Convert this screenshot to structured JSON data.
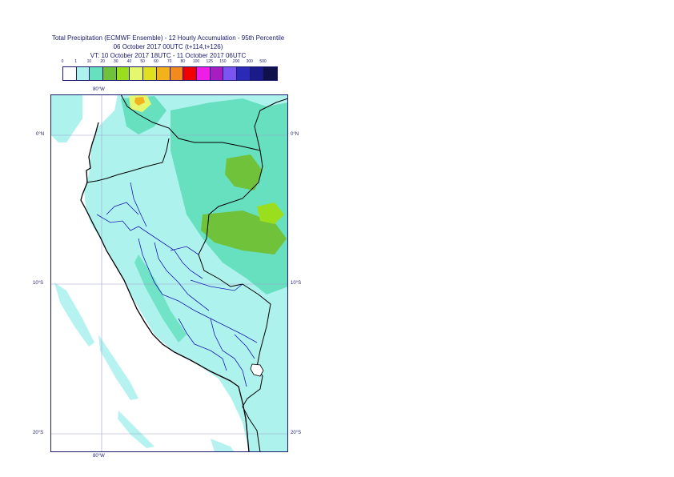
{
  "title": {
    "line1": "Total Precipitation (ECMWF Ensemble) - 12 Hourly Accumulation - 95th Percentile",
    "line2": "06 October 2017 00UTC (t+114,t+126)",
    "line3": "VT: 10 October 2017 18UTC - 11 October 2017 06UTC"
  },
  "legend": {
    "ticks": [
      "0",
      "1",
      "10",
      "20",
      "30",
      "40",
      "50",
      "60",
      "70",
      "80",
      "100",
      "125",
      "150",
      "200",
      "300",
      "500"
    ],
    "colors": [
      "#ffffff",
      "#aef2ee",
      "#66e0bf",
      "#6fc23a",
      "#9ade1e",
      "#e5f76f",
      "#e0e01e",
      "#f2b21e",
      "#f28a1e",
      "#f20000",
      "#ee1ee6",
      "#a61ec2",
      "#7a55f2",
      "#2a2ab6",
      "#1a1a8a",
      "#10104a"
    ]
  },
  "map": {
    "lon_top": "80°W",
    "lon_bottom": "80°W",
    "lat_0_left": "0°N",
    "lat_0_right": "0°N",
    "lat_10_left": "10°S",
    "lat_10_right": "10°S",
    "lat_20_left": "20°S",
    "lat_20_right": "20°S"
  }
}
